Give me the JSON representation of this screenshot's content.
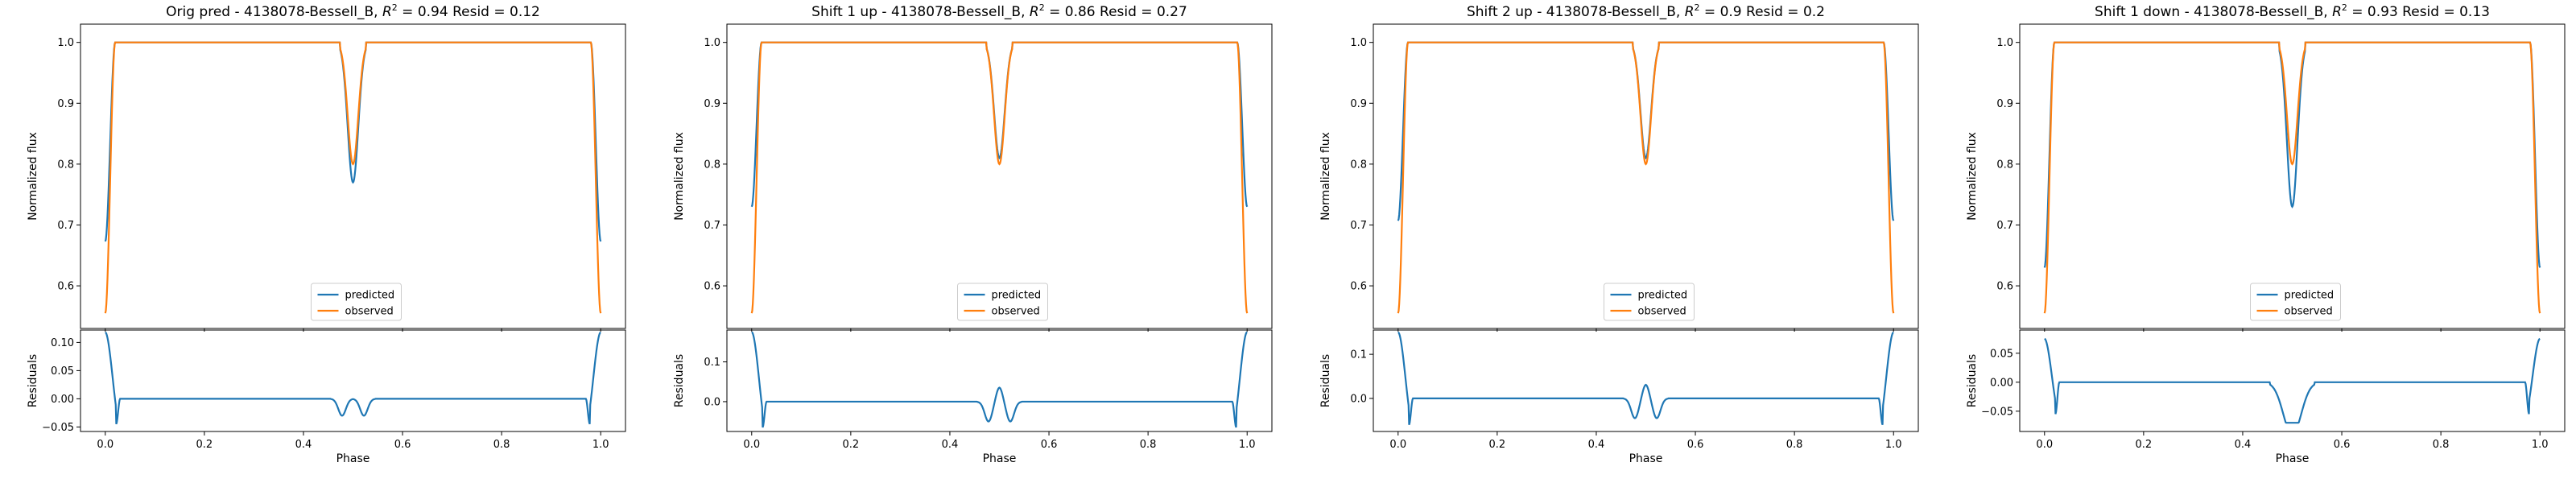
{
  "figure": {
    "background": "#ffffff",
    "colors": {
      "predicted": "#1f77b4",
      "observed": "#ff7f0e",
      "residual": "#1f77b4"
    }
  },
  "chart_data": [
    {
      "type": "line",
      "title": "Orig pred - 4138078-Bessell_B, R² = 0.94 Resid = 0.12",
      "title_parts": {
        "prefix": "Orig pred - 4138078-Bessell_B, ",
        "r_symbol": "R",
        "r_exp": "2",
        "suffix": " = 0.94 Resid = 0.12"
      },
      "main": {
        "ylabel": "Normalized flux",
        "xlim": [
          -0.05,
          1.05
        ],
        "ylim": [
          0.53,
          1.03
        ],
        "yticks": [
          0.6,
          0.7,
          0.8,
          0.9,
          1.0
        ],
        "ytick_labels": [
          "0.6",
          "0.7",
          "0.8",
          "0.9",
          "1.0"
        ],
        "grid": false,
        "legend": {
          "position": "lower center",
          "entries": [
            "predicted",
            "observed"
          ]
        },
        "series": [
          {
            "name": "predicted",
            "shape": {
              "start": 0.673,
              "base": 1.0,
              "dip_min": 0.77,
              "edge": 0.673
            }
          },
          {
            "name": "observed",
            "shape": {
              "start": 0.555,
              "base": 1.0,
              "dip_min": 0.8,
              "edge": 0.555
            }
          }
        ]
      },
      "residual": {
        "ylabel": "Residuals",
        "xlabel": "Phase",
        "ylim": [
          -0.058,
          0.122
        ],
        "yticks": [
          -0.05,
          0.0,
          0.05,
          0.1
        ],
        "ytick_labels": [
          "−0.05",
          "0.00",
          "0.05",
          "0.10"
        ],
        "xticks": [
          0.0,
          0.2,
          0.4,
          0.6,
          0.8,
          1.0
        ],
        "xtick_labels": [
          "0.0",
          "0.2",
          "0.4",
          "0.6",
          "0.8",
          "1.0"
        ],
        "series": {
          "start": 0.118,
          "min_edge": -0.045,
          "base": 0.0,
          "center_min": -0.03,
          "center_bump": 0.0
        }
      }
    },
    {
      "type": "line",
      "title": "Shift 1 up - 4138078-Bessell_B, R² = 0.86 Resid = 0.27",
      "title_parts": {
        "prefix": "Shift 1 up - 4138078-Bessell_B, ",
        "r_symbol": "R",
        "r_exp": "2",
        "suffix": " = 0.86 Resid = 0.27"
      },
      "main": {
        "ylabel": "Normalized flux",
        "xlim": [
          -0.05,
          1.05
        ],
        "ylim": [
          0.53,
          1.03
        ],
        "yticks": [
          0.6,
          0.7,
          0.8,
          0.9,
          1.0
        ],
        "ytick_labels": [
          "0.6",
          "0.7",
          "0.8",
          "0.9",
          "1.0"
        ],
        "grid": false,
        "legend": {
          "position": "lower center",
          "entries": [
            "predicted",
            "observed"
          ]
        },
        "series": [
          {
            "name": "predicted",
            "shape": {
              "start": 0.73,
              "base": 1.0,
              "dip_min": 0.81,
              "edge": 0.73
            }
          },
          {
            "name": "observed",
            "shape": {
              "start": 0.555,
              "base": 1.0,
              "dip_min": 0.8,
              "edge": 0.555
            }
          }
        ]
      },
      "residual": {
        "ylabel": "Residuals",
        "xlabel": "Phase",
        "ylim": [
          -0.075,
          0.18
        ],
        "yticks": [
          0.0,
          0.1
        ],
        "ytick_labels": [
          "0.0",
          "0.1"
        ],
        "xticks": [
          0.0,
          0.2,
          0.4,
          0.6,
          0.8,
          1.0
        ],
        "xtick_labels": [
          "0.0",
          "0.2",
          "0.4",
          "0.6",
          "0.8",
          "1.0"
        ],
        "series": {
          "start": 0.175,
          "min_edge": -0.065,
          "base": 0.0,
          "center_min": -0.05,
          "center_bump": 0.04
        }
      }
    },
    {
      "type": "line",
      "title": "Shift 2 up - 4138078-Bessell_B, R² = 0.9 Resid = 0.2",
      "title_parts": {
        "prefix": "Shift 2 up - 4138078-Bessell_B, ",
        "r_symbol": "R",
        "r_exp": "2",
        "suffix": " = 0.9 Resid = 0.2"
      },
      "main": {
        "ylabel": "Normalized flux",
        "xlim": [
          -0.05,
          1.05
        ],
        "ylim": [
          0.53,
          1.03
        ],
        "yticks": [
          0.6,
          0.7,
          0.8,
          0.9,
          1.0
        ],
        "ytick_labels": [
          "0.6",
          "0.7",
          "0.8",
          "0.9",
          "1.0"
        ],
        "grid": false,
        "legend": {
          "position": "lower center",
          "entries": [
            "predicted",
            "observed"
          ]
        },
        "series": [
          {
            "name": "predicted",
            "shape": {
              "start": 0.707,
              "base": 1.0,
              "dip_min": 0.81,
              "edge": 0.707
            }
          },
          {
            "name": "observed",
            "shape": {
              "start": 0.555,
              "base": 1.0,
              "dip_min": 0.8,
              "edge": 0.555
            }
          }
        ]
      },
      "residual": {
        "ylabel": "Residuals",
        "xlabel": "Phase",
        "ylim": [
          -0.075,
          0.155
        ],
        "yticks": [
          0.0,
          0.1
        ],
        "ytick_labels": [
          "0.0",
          "0.1"
        ],
        "xticks": [
          0.0,
          0.2,
          0.4,
          0.6,
          0.8,
          1.0
        ],
        "xtick_labels": [
          "0.0",
          "0.2",
          "0.4",
          "0.6",
          "0.8",
          "1.0"
        ],
        "series": {
          "start": 0.15,
          "min_edge": -0.06,
          "base": 0.0,
          "center_min": -0.045,
          "center_bump": 0.035
        }
      }
    },
    {
      "type": "line",
      "title": "Shift 1 down - 4138078-Bessell_B, R² = 0.93 Resid = 0.13",
      "title_parts": {
        "prefix": "Shift 1 down - 4138078-Bessell_B, ",
        "r_symbol": "R",
        "r_exp": "2",
        "suffix": " = 0.93 Resid = 0.13"
      },
      "main": {
        "ylabel": "Normalized flux",
        "xlim": [
          -0.05,
          1.05
        ],
        "ylim": [
          0.53,
          1.03
        ],
        "yticks": [
          0.6,
          0.7,
          0.8,
          0.9,
          1.0
        ],
        "ytick_labels": [
          "0.6",
          "0.7",
          "0.8",
          "0.9",
          "1.0"
        ],
        "grid": false,
        "legend": {
          "position": "lower center",
          "entries": [
            "predicted",
            "observed"
          ]
        },
        "series": [
          {
            "name": "predicted",
            "shape": {
              "start": 0.63,
              "base": 1.0,
              "dip_min": 0.73,
              "edge": 0.63
            }
          },
          {
            "name": "observed",
            "shape": {
              "start": 0.555,
              "base": 1.0,
              "dip_min": 0.8,
              "edge": 0.555
            }
          }
        ]
      },
      "residual": {
        "ylabel": "Residuals",
        "xlabel": "Phase",
        "ylim": [
          -0.085,
          0.09
        ],
        "yticks": [
          -0.05,
          0.0,
          0.05
        ],
        "ytick_labels": [
          "−0.05",
          "0.00",
          "0.05"
        ],
        "xticks": [
          0.0,
          0.2,
          0.4,
          0.6,
          0.8,
          1.0
        ],
        "xtick_labels": [
          "0.0",
          "0.2",
          "0.4",
          "0.6",
          "0.8",
          "1.0"
        ],
        "series": {
          "start": 0.075,
          "min_edge": -0.055,
          "base": 0.0,
          "center_min": -0.07,
          "center_bump": -0.07
        }
      }
    }
  ]
}
